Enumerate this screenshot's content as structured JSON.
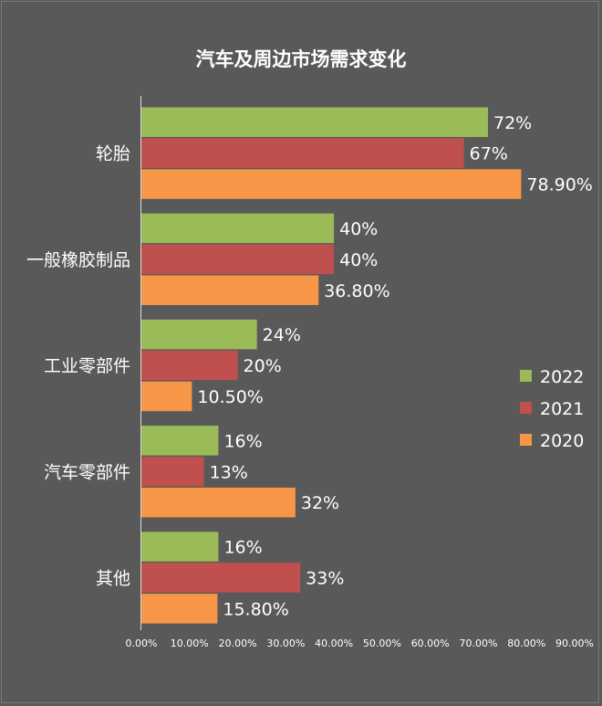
{
  "chart_data": {
    "type": "bar",
    "orientation": "horizontal",
    "title": "汽车及周边市场需求变化",
    "categories": [
      "轮胎",
      "一般橡胶制品",
      "工业零部件",
      "汽车零部件",
      "其他"
    ],
    "series": [
      {
        "name": "2022",
        "color": "#9bbb59",
        "values": [
          72,
          40,
          24,
          16,
          16
        ],
        "labels": [
          "72%",
          "40%",
          "24%",
          "16%",
          "16%"
        ]
      },
      {
        "name": "2021",
        "color": "#c0504d",
        "values": [
          67,
          40,
          20,
          13,
          33
        ],
        "labels": [
          "67%",
          "40%",
          "20%",
          "13%",
          "33%"
        ]
      },
      {
        "name": "2020",
        "color": "#f79646",
        "values": [
          78.9,
          36.8,
          10.5,
          32,
          15.8
        ],
        "labels": [
          "78.90%",
          "36.80%",
          "10.50%",
          "32%",
          "15.80%"
        ]
      }
    ],
    "xlim": [
      0,
      90
    ],
    "xticks": [
      0,
      10,
      20,
      30,
      40,
      50,
      60,
      70,
      80,
      90
    ],
    "xtick_labels": [
      "0.00%",
      "10.00%",
      "20.00%",
      "30.00%",
      "40.00%",
      "50.00%",
      "60.00%",
      "70.00%",
      "80.00%",
      "90.00%"
    ],
    "xlabel": "",
    "ylabel": "",
    "grid": false,
    "legend_position": "right"
  }
}
